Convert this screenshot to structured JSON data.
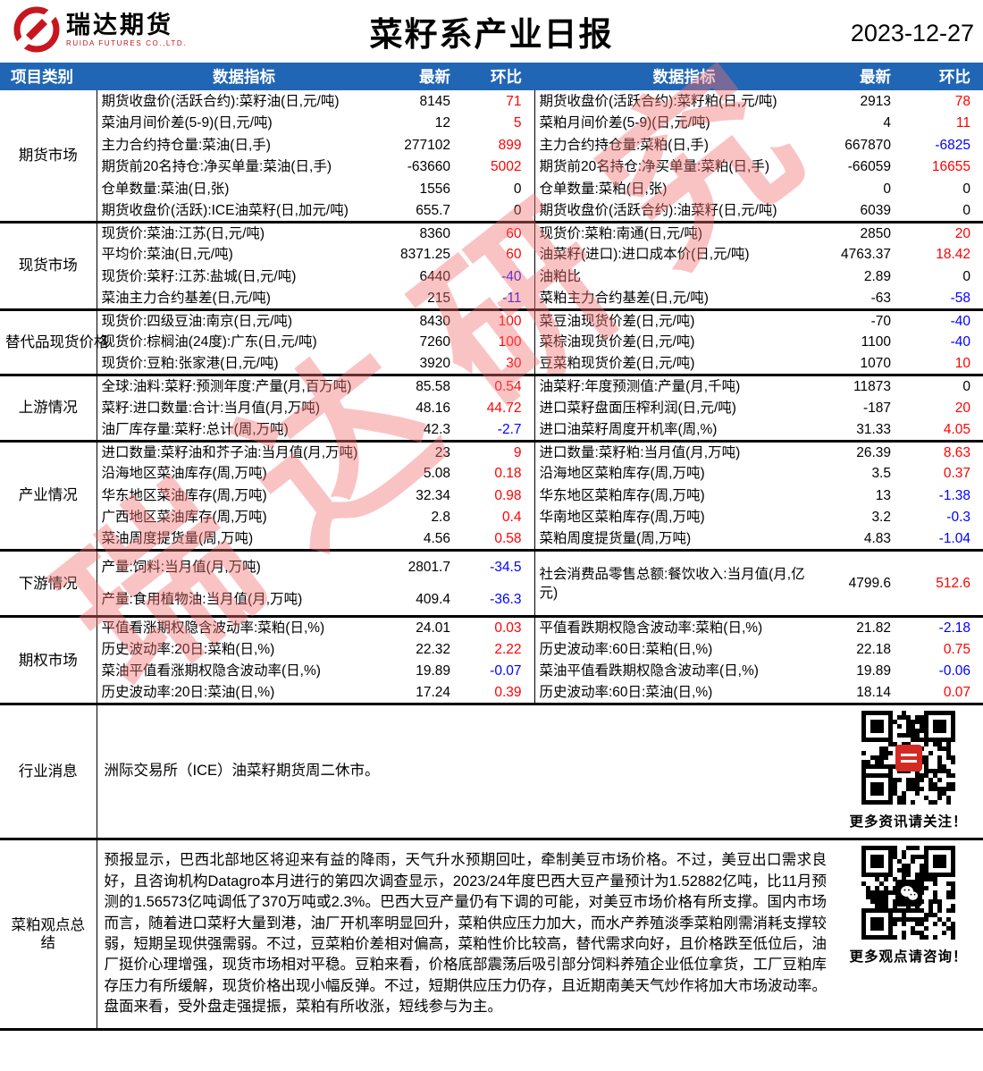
{
  "header": {
    "logo_title": "瑞达期货",
    "logo_subtitle": "RUIDA FUTURES CO.,LTD.",
    "title": "菜籽系产业日报",
    "date": "2023-12-27"
  },
  "columns": {
    "category": "项目类别",
    "indicator": "数据指标",
    "latest": "最新",
    "change": "环比"
  },
  "colors": {
    "up": "#ff0000",
    "down": "#0000ff",
    "flat": "#000000",
    "header_bg": "#2066b5",
    "logo_red": "#c8161e"
  },
  "watermark": "瑞达研究",
  "sections": [
    {
      "category": "期货市场",
      "rows": [
        {
          "li": "期货收盘价(活跃合约):菜籽油(日,元/吨)",
          "lv": "8145",
          "lc": "71",
          "ld": "up",
          "ri": "期货收盘价(活跃合约):菜籽粕(日,元/吨)",
          "rv": "2913",
          "rc": "78",
          "rd": "up"
        },
        {
          "li": "菜油月间价差(5-9)(日,元/吨)",
          "lv": "12",
          "lc": "5",
          "ld": "up",
          "ri": "菜粕月间价差(5-9)(日,元/吨)",
          "rv": "4",
          "rc": "11",
          "rd": "up"
        },
        {
          "li": "主力合约持仓量:菜油(日,手)",
          "lv": "277102",
          "lc": "899",
          "ld": "up",
          "ri": "主力合约持仓量:菜粕(日,手)",
          "rv": "667870",
          "rc": "-6825",
          "rd": "down"
        },
        {
          "li": "期货前20名持仓:净买单量:菜油(日,手)",
          "lv": "-63660",
          "lc": "5002",
          "ld": "up",
          "ri": "期货前20名持仓:净买单量:菜粕(日,手)",
          "rv": "-66059",
          "rc": "16655",
          "rd": "up"
        },
        {
          "li": "仓单数量:菜油(日,张)",
          "lv": "1556",
          "lc": "0",
          "ld": "flat",
          "ri": "仓单数量:菜粕(日,张)",
          "rv": "0",
          "rc": "0",
          "rd": "flat"
        },
        {
          "li": "期货收盘价(活跃):ICE油菜籽(日,加元/吨)",
          "lv": "655.7",
          "lc": "0",
          "ld": "flat",
          "ri": "期货收盘价(活跃合约):油菜籽(日,元/吨)",
          "rv": "6039",
          "rc": "0",
          "rd": "flat"
        }
      ]
    },
    {
      "category": "现货市场",
      "rows": [
        {
          "li": "现货价:菜油:江苏(日,元/吨)",
          "lv": "8360",
          "lc": "60",
          "ld": "up",
          "ri": "现货价:菜粕:南通(日,元/吨)",
          "rv": "2850",
          "rc": "20",
          "rd": "up"
        },
        {
          "li": "平均价:菜油(日,元/吨)",
          "lv": "8371.25",
          "lc": "60",
          "ld": "up",
          "ri": "油菜籽(进口):进口成本价(日,元/吨)",
          "rv": "4763.37",
          "rc": "18.42",
          "rd": "up"
        },
        {
          "li": "现货价:菜籽:江苏:盐城(日,元/吨)",
          "lv": "6440",
          "lc": "-40",
          "ld": "down",
          "ri": "油粕比",
          "rv": "2.89",
          "rc": "0",
          "rd": "flat"
        },
        {
          "li": "菜油主力合约基差(日,元/吨)",
          "lv": "215",
          "lc": "-11",
          "ld": "down",
          "ri": "菜粕主力合约基差(日,元/吨)",
          "rv": "-63",
          "rc": "-58",
          "rd": "down"
        }
      ]
    },
    {
      "category": "替代品现货价格",
      "rows": [
        {
          "li": "现货价:四级豆油:南京(日,元/吨)",
          "lv": "8430",
          "lc": "100",
          "ld": "up",
          "ri": "菜豆油现货价差(日,元/吨)",
          "rv": "-70",
          "rc": "-40",
          "rd": "down"
        },
        {
          "li": "现货价:棕榈油(24度):广东(日,元/吨)",
          "lv": "7260",
          "lc": "100",
          "ld": "up",
          "ri": "菜棕油现货价差(日,元/吨)",
          "rv": "1100",
          "rc": "-40",
          "rd": "down"
        },
        {
          "li": "现货价:豆粕:张家港(日,元/吨)",
          "lv": "3920",
          "lc": "30",
          "ld": "up",
          "ri": "豆菜粕现货价差(日,元/吨)",
          "rv": "1070",
          "rc": "10",
          "rd": "up"
        }
      ]
    },
    {
      "category": "上游情况",
      "rows": [
        {
          "li": "全球:油料:菜籽:预测年度:产量(月,百万吨)",
          "lv": "85.58",
          "lc": "0.54",
          "ld": "up",
          "ri": "油菜籽:年度预测值:产量(月,千吨)",
          "rv": "11873",
          "rc": "0",
          "rd": "flat"
        },
        {
          "li": "菜籽:进口数量:合计:当月值(月,万吨)",
          "lv": "48.16",
          "lc": "44.72",
          "ld": "up",
          "ri": "进口菜籽盘面压榨利润(日,元/吨)",
          "rv": "-187",
          "rc": "20",
          "rd": "up"
        },
        {
          "li": "油厂库存量:菜籽:总计(周,万吨)",
          "lv": "42.3",
          "lc": "-2.7",
          "ld": "down",
          "ri": "进口油菜籽周度开机率(周,%)",
          "rv": "31.33",
          "rc": "4.05",
          "rd": "up"
        }
      ]
    },
    {
      "category": "产业情况",
      "rows": [
        {
          "li": "进口数量:菜籽油和芥子油:当月值(月,万吨)",
          "lv": "23",
          "lc": "9",
          "ld": "up",
          "ri": "进口数量:菜籽粕:当月值(月,万吨)",
          "rv": "26.39",
          "rc": "8.63",
          "rd": "up"
        },
        {
          "li": "沿海地区菜油库存(周,万吨)",
          "lv": "5.08",
          "lc": "0.18",
          "ld": "up",
          "ri": "沿海地区菜粕库存(周,万吨)",
          "rv": "3.5",
          "rc": "0.37",
          "rd": "up"
        },
        {
          "li": "华东地区菜油库存(周,万吨)",
          "lv": "32.34",
          "lc": "0.98",
          "ld": "up",
          "ri": "华东地区菜粕库存(周,万吨)",
          "rv": "13",
          "rc": "-1.38",
          "rd": "down"
        },
        {
          "li": "广西地区菜油库存(周,万吨)",
          "lv": "2.8",
          "lc": "0.4",
          "ld": "up",
          "ri": "华南地区菜粕库存(周,万吨)",
          "rv": "3.2",
          "rc": "-0.3",
          "rd": "down"
        },
        {
          "li": "菜油周度提货量(周,万吨)",
          "lv": "4.56",
          "lc": "0.58",
          "ld": "up",
          "ri": "菜粕周度提货量(周,万吨)",
          "rv": "4.83",
          "rc": "-1.04",
          "rd": "down"
        }
      ]
    },
    {
      "category": "下游情况",
      "rows": [
        {
          "li": "产量:饲料:当月值(月,万吨)",
          "lv": "2801.7",
          "lc": "-34.5",
          "ld": "down",
          "ri": "社会消费品零售总额:餐饮收入:当月值(月,亿元)",
          "rv": "4799.6",
          "rc": "512.6",
          "rd": "up",
          "rspan": 2
        },
        {
          "li": "产量:食用植物油:当月值(月,万吨)",
          "lv": "409.4",
          "lc": "-36.3",
          "ld": "down",
          "rskip": true
        }
      ]
    },
    {
      "category": "期权市场",
      "rows": [
        {
          "li": "平值看涨期权隐含波动率:菜粕(日,%)",
          "lv": "24.01",
          "lc": "0.03",
          "ld": "up",
          "ri": "平值看跌期权隐含波动率:菜粕(日,%)",
          "rv": "21.82",
          "rc": "-2.18",
          "rd": "down"
        },
        {
          "li": "历史波动率:20日:菜粕(日,%)",
          "lv": "22.32",
          "lc": "2.22",
          "ld": "up",
          "ri": "历史波动率:60日:菜粕(日,%)",
          "rv": "22.18",
          "rc": "0.75",
          "rd": "up"
        },
        {
          "li": "菜油平值看涨期权隐含波动率(日,%)",
          "lv": "19.89",
          "lc": "-0.07",
          "ld": "down",
          "ri": "菜油平值看跌期权隐含波动率(日,%)",
          "rv": "19.89",
          "rc": "-0.06",
          "rd": "down"
        },
        {
          "li": "历史波动率:20日:菜油(日,%)",
          "lv": "17.24",
          "lc": "0.39",
          "ld": "up",
          "ri": "历史波动率:60日:菜油(日,%)",
          "rv": "18.14",
          "rc": "0.07",
          "rd": "up"
        }
      ]
    }
  ],
  "news": {
    "category": "行业消息",
    "text": "洲际交易所（ICE）油菜籽期货周二休市。",
    "qr_caption": "更多资讯请关注！"
  },
  "summary": {
    "category": "菜粕观点总结",
    "text": "预报显示，巴西北部地区将迎来有益的降雨，天气升水预期回吐，牵制美豆市场价格。不过，美豆出口需求良好，且咨询机构Datagro本月进行的第四次调查显示，2023/24年度巴西大豆产量预计为1.52882亿吨，比11月预测的1.56573亿吨调低了370万吨或2.3%。巴西大豆产量仍有下调的可能，对美豆市场价格有所支撑。国内市场而言，随着进口菜籽大量到港，油厂开机率明显回升，菜粕供应压力加大，而水产养殖淡季菜粕刚需消耗支撑较弱，短期呈现供强需弱。不过，豆菜粕价差相对偏高，菜粕性价比较高，替代需求向好，且价格跌至低位后，油厂挺价心理增强，现货市场相对平稳。豆粕来看，价格底部震荡后吸引部分饲料养殖企业低位拿货，工厂豆粕库存压力有所缓解，现货价格出现小幅反弹。不过，短期供应压力仍存，且近期南美天气炒作将加大市场波动率。盘面来看，受外盘走强提振，菜粕有所收涨，短线参与为主。",
    "qr_caption": "更多观点请咨询！"
  }
}
